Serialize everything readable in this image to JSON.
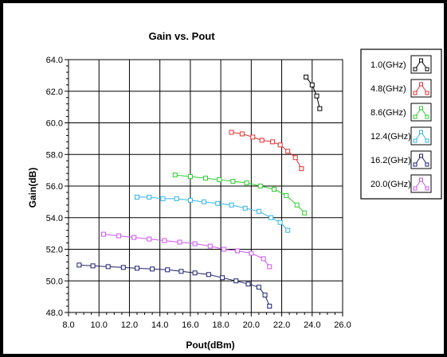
{
  "chart_data": {
    "type": "line",
    "title": "Gain vs. Pout",
    "xlabel": "Pout(dBm)",
    "ylabel": "Gain(dB)",
    "xlim": [
      8.0,
      26.0
    ],
    "ylim": [
      48.0,
      64.0
    ],
    "xticks": [
      "8.0",
      "10.0",
      "12.0",
      "14.0",
      "16.0",
      "18.0",
      "20.0",
      "22.0",
      "24.0",
      "26.0"
    ],
    "yticks": [
      "48.0",
      "50.0",
      "52.0",
      "54.0",
      "56.0",
      "58.0",
      "60.0",
      "62.0",
      "64.0"
    ],
    "grid": true,
    "legend_position": "right",
    "series": [
      {
        "name": "1.0(GHz)",
        "color": "#000000",
        "x": [
          23.6,
          24.0,
          24.3,
          24.5
        ],
        "y": [
          62.9,
          62.4,
          61.7,
          60.9
        ]
      },
      {
        "name": "4.8(GHz)",
        "color": "#e03030",
        "x": [
          18.7,
          19.4,
          20.1,
          20.7,
          21.4,
          21.9,
          22.4,
          22.9,
          23.3
        ],
        "y": [
          59.4,
          59.3,
          59.1,
          58.9,
          58.8,
          58.6,
          58.2,
          57.8,
          57.1
        ]
      },
      {
        "name": "8.6(GHz)",
        "color": "#2fcc2f",
        "x": [
          15.0,
          16.0,
          17.0,
          17.9,
          18.8,
          19.7,
          20.6,
          21.5,
          22.3,
          23.0,
          23.5
        ],
        "y": [
          56.7,
          56.6,
          56.5,
          56.4,
          56.3,
          56.2,
          56.0,
          55.8,
          55.4,
          54.8,
          54.3
        ]
      },
      {
        "name": "12.4(GHz)",
        "color": "#33b5e8",
        "x": [
          12.5,
          13.3,
          14.2,
          15.1,
          16.0,
          16.9,
          17.8,
          18.7,
          19.6,
          20.5,
          21.3,
          21.9,
          22.4
        ],
        "y": [
          55.3,
          55.3,
          55.2,
          55.2,
          55.1,
          55.0,
          54.9,
          54.8,
          54.6,
          54.4,
          54.0,
          53.7,
          53.2
        ]
      },
      {
        "name": "16.2(GHz)",
        "color": "#1b1f6e",
        "x": [
          8.7,
          9.6,
          10.6,
          11.6,
          12.5,
          13.5,
          14.5,
          15.4,
          16.3,
          17.2,
          18.1,
          19.0,
          19.8,
          20.5,
          20.9,
          21.2
        ],
        "y": [
          51.0,
          50.95,
          50.9,
          50.85,
          50.8,
          50.75,
          50.7,
          50.6,
          50.5,
          50.4,
          50.2,
          50.0,
          49.8,
          49.6,
          49.1,
          48.4
        ]
      },
      {
        "name": "20.0(GHz)",
        "color": "#cc55ee",
        "x": [
          10.3,
          11.3,
          12.3,
          13.3,
          14.3,
          15.3,
          16.3,
          17.3,
          18.2,
          19.1,
          20.0,
          20.8,
          21.2
        ],
        "y": [
          52.95,
          52.85,
          52.75,
          52.65,
          52.55,
          52.45,
          52.35,
          52.2,
          52.0,
          51.9,
          51.75,
          51.4,
          50.9
        ]
      }
    ]
  }
}
